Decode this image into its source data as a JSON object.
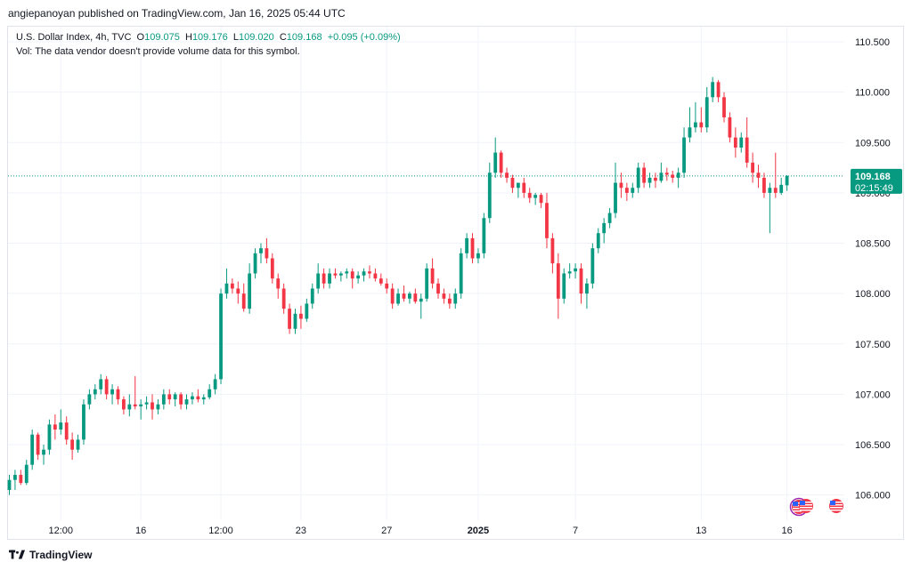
{
  "caption": "angiepanoyan published on TradingView.com, Jan 16, 2025 05:44 UTC",
  "legend": {
    "symbol": "U.S. Dollar Index, 4h, TVC",
    "o_label": "O",
    "o_value": "109.075",
    "h_label": "H",
    "h_value": "109.176",
    "l_label": "L",
    "l_value": "109.020",
    "c_label": "C",
    "c_value": "109.168",
    "change": "+0.095 (+0.09%)",
    "vol_note": "Vol: The data vendor doesn't provide volume data for this symbol."
  },
  "price_badge": {
    "price": "109.168",
    "countdown": "02:15:49"
  },
  "brand": "TradingView",
  "colors": {
    "up": "#089981",
    "down": "#f23645",
    "grid": "#f0f3fa",
    "axis_text": "#131722",
    "price_line": "#089981"
  },
  "chart_data": {
    "type": "candlestick",
    "ylim": [
      105.75,
      110.65
    ],
    "y_ticks": [
      "106.000",
      "106.500",
      "107.000",
      "107.500",
      "108.000",
      "108.500",
      "109.000",
      "109.500",
      "110.000",
      "110.500"
    ],
    "x_ticks": [
      {
        "label": "12:00",
        "index": 9,
        "bold": false
      },
      {
        "label": "16",
        "index": 23,
        "bold": false
      },
      {
        "label": "12:00",
        "index": 37,
        "bold": false
      },
      {
        "label": "23",
        "index": 51,
        "bold": false
      },
      {
        "label": "27",
        "index": 66,
        "bold": false
      },
      {
        "label": "2025",
        "index": 82,
        "bold": true
      },
      {
        "label": "7",
        "index": 99,
        "bold": false
      },
      {
        "label": "13",
        "index": 121,
        "bold": false
      },
      {
        "label": "16",
        "index": 136,
        "bold": false
      }
    ],
    "last_price": 109.168,
    "candles": [
      [
        106.05,
        106.2,
        106.0,
        106.15
      ],
      [
        106.15,
        106.25,
        106.05,
        106.2
      ],
      [
        106.2,
        106.25,
        106.1,
        106.12
      ],
      [
        106.12,
        106.35,
        106.1,
        106.3
      ],
      [
        106.3,
        106.65,
        106.25,
        106.6
      ],
      [
        106.6,
        106.62,
        106.35,
        106.4
      ],
      [
        106.4,
        106.5,
        106.3,
        106.45
      ],
      [
        106.45,
        106.75,
        106.4,
        106.7
      ],
      [
        106.7,
        106.8,
        106.55,
        106.65
      ],
      [
        106.65,
        106.85,
        106.6,
        106.72
      ],
      [
        106.72,
        106.78,
        106.5,
        106.55
      ],
      [
        106.55,
        106.62,
        106.35,
        106.45
      ],
      [
        106.45,
        106.6,
        106.42,
        106.55
      ],
      [
        106.55,
        106.95,
        106.5,
        106.9
      ],
      [
        106.9,
        107.05,
        106.85,
        107.0
      ],
      [
        107.0,
        107.1,
        106.95,
        107.05
      ],
      [
        107.05,
        107.2,
        107.0,
        107.15
      ],
      [
        107.15,
        107.18,
        106.95,
        107.0
      ],
      [
        107.0,
        107.1,
        106.9,
        107.05
      ],
      [
        107.05,
        107.08,
        106.9,
        106.95
      ],
      [
        106.95,
        106.98,
        106.8,
        106.85
      ],
      [
        106.85,
        107.0,
        106.78,
        106.9
      ],
      [
        106.9,
        107.18,
        106.85,
        106.88
      ],
      [
        106.88,
        106.95,
        106.75,
        106.9
      ],
      [
        106.9,
        106.98,
        106.85,
        106.92
      ],
      [
        106.92,
        107.0,
        106.75,
        106.85
      ],
      [
        106.85,
        106.95,
        106.8,
        106.9
      ],
      [
        106.9,
        107.05,
        106.85,
        107.0
      ],
      [
        107.0,
        107.05,
        106.9,
        106.95
      ],
      [
        106.95,
        107.02,
        106.88,
        107.0
      ],
      [
        107.0,
        107.02,
        106.85,
        106.9
      ],
      [
        106.9,
        107.0,
        106.85,
        106.95
      ],
      [
        106.95,
        107.02,
        106.9,
        106.98
      ],
      [
        106.98,
        107.05,
        106.92,
        106.95
      ],
      [
        106.95,
        107.0,
        106.9,
        106.97
      ],
      [
        106.97,
        107.1,
        106.95,
        107.05
      ],
      [
        107.05,
        107.2,
        107.0,
        107.15
      ],
      [
        107.15,
        108.05,
        107.1,
        108.0
      ],
      [
        108.0,
        108.25,
        107.95,
        108.1
      ],
      [
        108.1,
        108.15,
        108.0,
        108.05
      ],
      [
        108.05,
        108.12,
        107.9,
        108.0
      ],
      [
        108.0,
        108.1,
        107.82,
        107.85
      ],
      [
        107.85,
        108.3,
        107.8,
        108.2
      ],
      [
        108.2,
        108.45,
        108.15,
        108.4
      ],
      [
        108.4,
        108.5,
        108.3,
        108.45
      ],
      [
        108.45,
        108.55,
        108.3,
        108.35
      ],
      [
        108.35,
        108.4,
        108.1,
        108.15
      ],
      [
        108.15,
        108.2,
        107.95,
        108.05
      ],
      [
        108.05,
        108.1,
        107.8,
        107.85
      ],
      [
        107.85,
        107.9,
        107.6,
        107.65
      ],
      [
        107.65,
        107.85,
        107.6,
        107.8
      ],
      [
        107.8,
        107.88,
        107.65,
        107.75
      ],
      [
        107.75,
        107.95,
        107.72,
        107.9
      ],
      [
        107.9,
        108.1,
        107.85,
        108.05
      ],
      [
        108.05,
        108.3,
        108.0,
        108.2
      ],
      [
        108.2,
        108.25,
        108.05,
        108.1
      ],
      [
        108.1,
        108.25,
        108.05,
        108.2
      ],
      [
        108.2,
        108.25,
        108.15,
        108.18
      ],
      [
        108.18,
        108.22,
        108.12,
        108.2
      ],
      [
        108.2,
        108.25,
        108.15,
        108.22
      ],
      [
        108.22,
        108.25,
        108.05,
        108.15
      ],
      [
        108.15,
        108.22,
        108.1,
        108.18
      ],
      [
        108.18,
        108.25,
        108.12,
        108.22
      ],
      [
        108.22,
        108.28,
        108.15,
        108.2
      ],
      [
        108.2,
        108.25,
        108.12,
        108.15
      ],
      [
        108.15,
        108.2,
        108.08,
        108.1
      ],
      [
        108.1,
        108.15,
        108.0,
        108.05
      ],
      [
        108.05,
        108.1,
        107.85,
        107.9
      ],
      [
        107.9,
        108.05,
        107.88,
        108.0
      ],
      [
        108.0,
        108.08,
        107.92,
        107.95
      ],
      [
        107.95,
        108.02,
        107.9,
        108.0
      ],
      [
        108.0,
        108.05,
        107.9,
        107.92
      ],
      [
        107.92,
        108.0,
        107.75,
        107.95
      ],
      [
        107.95,
        108.3,
        107.92,
        108.25
      ],
      [
        108.25,
        108.35,
        108.05,
        108.1
      ],
      [
        108.1,
        108.15,
        107.95,
        108.0
      ],
      [
        108.0,
        108.05,
        107.9,
        107.95
      ],
      [
        107.95,
        108.0,
        107.85,
        107.9
      ],
      [
        107.9,
        108.05,
        107.85,
        108.0
      ],
      [
        108.0,
        108.45,
        107.95,
        108.4
      ],
      [
        108.4,
        108.6,
        108.35,
        108.55
      ],
      [
        108.55,
        108.6,
        108.3,
        108.35
      ],
      [
        108.35,
        108.45,
        108.3,
        108.4
      ],
      [
        108.4,
        108.8,
        108.35,
        108.75
      ],
      [
        108.75,
        109.3,
        108.7,
        109.2
      ],
      [
        109.2,
        109.55,
        109.15,
        109.4
      ],
      [
        109.4,
        109.42,
        109.15,
        109.2
      ],
      [
        109.2,
        109.25,
        109.1,
        109.15
      ],
      [
        109.15,
        109.18,
        109.0,
        109.05
      ],
      [
        109.05,
        109.1,
        108.95,
        109.1
      ],
      [
        109.1,
        109.15,
        108.95,
        109.0
      ],
      [
        109.0,
        109.05,
        108.9,
        108.95
      ],
      [
        108.95,
        109.0,
        108.88,
        108.98
      ],
      [
        108.98,
        109.0,
        108.85,
        108.9
      ],
      [
        108.9,
        109.0,
        108.45,
        108.55
      ],
      [
        108.55,
        108.6,
        108.2,
        108.3
      ],
      [
        108.3,
        108.4,
        107.75,
        107.95
      ],
      [
        107.95,
        108.25,
        107.9,
        108.2
      ],
      [
        108.2,
        108.3,
        108.15,
        108.22
      ],
      [
        108.22,
        108.3,
        108.15,
        108.25
      ],
      [
        108.25,
        108.3,
        107.9,
        108.0
      ],
      [
        108.0,
        108.15,
        107.85,
        108.1
      ],
      [
        108.1,
        108.5,
        108.05,
        108.45
      ],
      [
        108.45,
        108.65,
        108.4,
        108.6
      ],
      [
        108.6,
        108.75,
        108.5,
        108.7
      ],
      [
        108.7,
        108.85,
        108.65,
        108.8
      ],
      [
        108.8,
        109.3,
        108.75,
        109.1
      ],
      [
        109.1,
        109.2,
        108.95,
        109.05
      ],
      [
        109.05,
        109.1,
        108.92,
        109.0
      ],
      [
        109.0,
        109.1,
        108.95,
        109.05
      ],
      [
        109.05,
        109.3,
        109.0,
        109.25
      ],
      [
        109.25,
        109.3,
        109.05,
        109.1
      ],
      [
        109.1,
        109.2,
        109.05,
        109.15
      ],
      [
        109.15,
        109.2,
        109.05,
        109.12
      ],
      [
        109.12,
        109.3,
        109.1,
        109.2
      ],
      [
        109.2,
        109.25,
        109.12,
        109.18
      ],
      [
        109.18,
        109.22,
        109.1,
        109.15
      ],
      [
        109.15,
        109.25,
        109.05,
        109.2
      ],
      [
        109.2,
        109.65,
        109.15,
        109.55
      ],
      [
        109.55,
        109.85,
        109.5,
        109.65
      ],
      [
        109.65,
        109.9,
        109.6,
        109.7
      ],
      [
        109.7,
        109.85,
        109.6,
        109.65
      ],
      [
        109.65,
        110.05,
        109.6,
        109.95
      ],
      [
        109.95,
        110.15,
        109.9,
        110.1
      ],
      [
        110.1,
        110.12,
        109.9,
        109.95
      ],
      [
        109.95,
        110.0,
        109.7,
        109.75
      ],
      [
        109.75,
        109.8,
        109.5,
        109.55
      ],
      [
        109.55,
        109.65,
        109.35,
        109.45
      ],
      [
        109.45,
        109.6,
        109.4,
        109.55
      ],
      [
        109.55,
        109.75,
        109.25,
        109.3
      ],
      [
        109.3,
        109.4,
        109.1,
        109.2
      ],
      [
        109.2,
        109.28,
        109.05,
        109.15
      ],
      [
        109.15,
        109.2,
        108.95,
        109.0
      ],
      [
        109.0,
        109.1,
        108.6,
        109.05
      ],
      [
        109.05,
        109.4,
        108.95,
        109.0
      ],
      [
        109.0,
        109.15,
        108.98,
        109.08
      ],
      [
        109.075,
        109.176,
        109.02,
        109.168
      ]
    ]
  }
}
